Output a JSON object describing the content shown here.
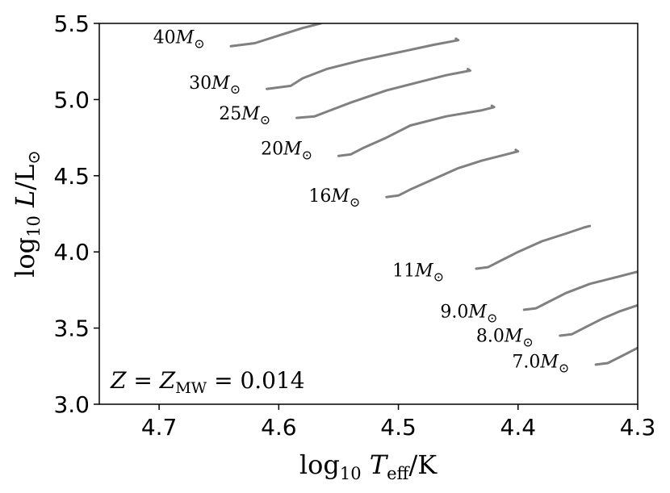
{
  "chart_data": {
    "type": "line",
    "title": "",
    "xlabel": "log10 Teff/K",
    "ylabel": "log10 L/L⊙",
    "xlim": [
      4.75,
      4.3
    ],
    "ylim": [
      3.0,
      5.5
    ],
    "x_inverted": true,
    "xticks": [
      4.7,
      4.6,
      4.5,
      4.4,
      4.3
    ],
    "xtick_labels": [
      "4.7",
      "4.6",
      "4.5",
      "4.4",
      "4.3"
    ],
    "yticks": [
      3.0,
      3.5,
      4.0,
      4.5,
      5.0,
      5.5
    ],
    "ytick_labels": [
      "3.0",
      "3.5",
      "4.0",
      "4.5",
      "5.0",
      "5.5"
    ],
    "grid": false,
    "annotation": "Z = Z_MW = 0.014",
    "line_color": "#808080",
    "series": [
      {
        "name": "40M⊙",
        "x": [
          4.64,
          4.62,
          4.6,
          4.58,
          4.565
        ],
        "y": [
          5.35,
          5.37,
          5.42,
          5.47,
          5.5
        ]
      },
      {
        "name": "30M⊙",
        "x": [
          4.61,
          4.59,
          4.58,
          4.56,
          4.53,
          4.5,
          4.47,
          4.45,
          4.452
        ],
        "y": [
          5.07,
          5.09,
          5.14,
          5.2,
          5.26,
          5.31,
          5.36,
          5.39,
          5.4
        ]
      },
      {
        "name": "25M⊙",
        "x": [
          4.585,
          4.57,
          4.56,
          4.54,
          4.51,
          4.48,
          4.46,
          4.44,
          4.442
        ],
        "y": [
          4.88,
          4.89,
          4.92,
          4.98,
          5.06,
          5.12,
          5.16,
          5.19,
          5.2
        ]
      },
      {
        "name": "20M⊙",
        "x": [
          4.55,
          4.54,
          4.53,
          4.51,
          4.49,
          4.46,
          4.43,
          4.42,
          4.422
        ],
        "y": [
          4.63,
          4.64,
          4.68,
          4.75,
          4.83,
          4.89,
          4.93,
          4.95,
          4.96
        ]
      },
      {
        "name": "16M⊙",
        "x": [
          4.51,
          4.5,
          4.49,
          4.47,
          4.45,
          4.43,
          4.41,
          4.4,
          4.402
        ],
        "y": [
          4.36,
          4.37,
          4.41,
          4.48,
          4.55,
          4.6,
          4.64,
          4.66,
          4.67
        ]
      },
      {
        "name": "11M⊙",
        "x": [
          4.435,
          4.425,
          4.415,
          4.4,
          4.38,
          4.36,
          4.345,
          4.34
        ],
        "y": [
          3.89,
          3.9,
          3.94,
          4.0,
          4.07,
          4.12,
          4.16,
          4.17
        ]
      },
      {
        "name": "9.0M⊙",
        "x": [
          4.395,
          4.385,
          4.375,
          4.36,
          4.34,
          4.32,
          4.305,
          4.3
        ],
        "y": [
          3.62,
          3.63,
          3.67,
          3.73,
          3.79,
          3.83,
          3.86,
          3.87
        ]
      },
      {
        "name": "8.0M⊙",
        "x": [
          4.365,
          4.355,
          4.345,
          4.33,
          4.315,
          4.3
        ],
        "y": [
          3.45,
          3.46,
          3.5,
          3.56,
          3.61,
          3.65
        ]
      },
      {
        "name": "7.0M⊙",
        "x": [
          4.335,
          4.325,
          4.315,
          4.305,
          4.3
        ],
        "y": [
          3.26,
          3.27,
          3.31,
          3.35,
          3.37
        ]
      }
    ],
    "label_positions": [
      {
        "x": 4.705,
        "y": 5.37
      },
      {
        "x": 4.675,
        "y": 5.07
      },
      {
        "x": 4.65,
        "y": 4.87
      },
      {
        "x": 4.615,
        "y": 4.64
      },
      {
        "x": 4.575,
        "y": 4.33
      },
      {
        "x": 4.505,
        "y": 3.84
      },
      {
        "x": 4.465,
        "y": 3.57
      },
      {
        "x": 4.435,
        "y": 3.41
      },
      {
        "x": 4.405,
        "y": 3.24
      }
    ]
  }
}
